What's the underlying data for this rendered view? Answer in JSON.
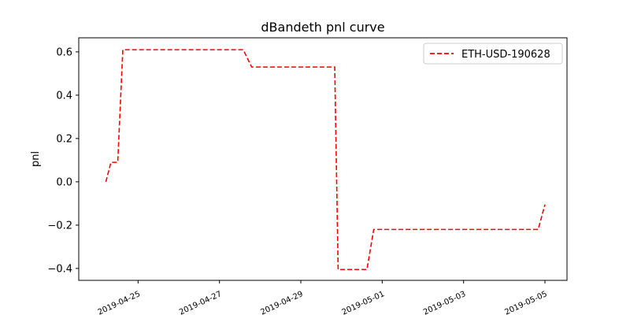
{
  "chart_data": {
    "type": "line",
    "title": "dBandeth pnl curve",
    "xlabel": "",
    "ylabel": "pnl",
    "xlim": [
      "2019-04-23T13:00",
      "2019-05-05T13:00"
    ],
    "ylim": [
      -0.455,
      0.665
    ],
    "xticks": [
      "2019-04-25",
      "2019-04-27",
      "2019-04-29",
      "2019-05-01",
      "2019-05-03",
      "2019-05-05"
    ],
    "yticks": [
      -0.4,
      -0.2,
      0.0,
      0.2,
      0.4,
      0.6
    ],
    "ytick_labels": [
      "−0.4",
      "−0.2",
      "0.0",
      "0.2",
      "0.4",
      "0.6"
    ],
    "grid": false,
    "legend_position": "top-right",
    "series": [
      {
        "name": "ETH-USD-190628",
        "color": "#ff0000",
        "style": "dashed",
        "points": [
          [
            "2019-04-24T05:00",
            0.0
          ],
          [
            "2019-04-24T08:00",
            0.09
          ],
          [
            "2019-04-24T12:00",
            0.09
          ],
          [
            "2019-04-24T15:00",
            0.61
          ],
          [
            "2019-04-27T14:00",
            0.61
          ],
          [
            "2019-04-27T19:00",
            0.53
          ],
          [
            "2019-04-29T20:00",
            0.53
          ],
          [
            "2019-04-29T22:00",
            -0.405
          ],
          [
            "2019-04-30T15:00",
            -0.405
          ],
          [
            "2019-04-30T19:00",
            -0.22
          ],
          [
            "2019-05-04T20:00",
            -0.22
          ],
          [
            "2019-05-05T00:00",
            -0.105
          ]
        ]
      }
    ]
  }
}
